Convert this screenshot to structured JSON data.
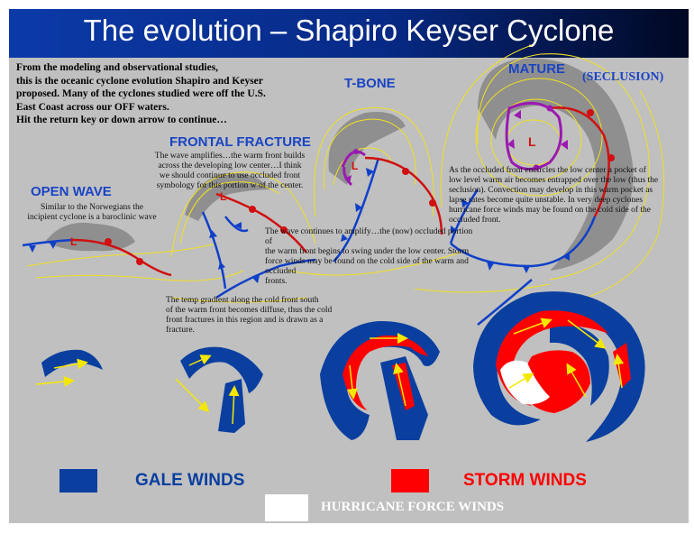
{
  "title": "The evolution – Shapiro Keyser Cyclone",
  "intro_lines": [
    "From the modeling and observational studies,",
    "this is the oceanic cyclone evolution Shapiro and Keyser",
    "proposed.  Many of the cyclones studied were off the U.S.",
    "East Coast across our OFF waters.",
    "Hit the return key or down  arrow to continue…"
  ],
  "stages": {
    "open_wave": "OPEN WAVE",
    "frontal_fracture": "FRONTAL FRACTURE",
    "t_bone": "T-BONE",
    "mature": "MATURE",
    "seclusion": "(SECLUSION)"
  },
  "notes": {
    "open_wave": [
      "Similar to the Norwegians the",
      "incipient cyclone is a baroclinic wave"
    ],
    "frontal_fracture": [
      "The wave amplifies…the warm front builds",
      "across the developing low center…I think",
      "we should continue to use occluded front",
      "symbology for this portion w of the center."
    ],
    "t_bone": [
      "The wave continues to amplify…the (now) occluded portion of",
      "the warm front begins to swing under the low center. Storm",
      "force winds may be found on the cold side of the warm and occluded",
      "fronts."
    ],
    "mature": [
      "As the occluded front encircles the low center a pocket of",
      "low level warm air becomes entrapped over the low (thus the",
      "seclusion). Convection may develop in this warm pocket as",
      "lapse rates become quite unstable. In very deep cyclones",
      "hurricane force winds may be found on the cold side of the",
      "occluded front."
    ],
    "gradient": [
      "The temp gradient along the cold front south",
      "of the warm front becomes diffuse, thus the cold",
      "front fractures in this region and is drawn as a",
      "fracture."
    ]
  },
  "low_symbol": "L",
  "legend": {
    "gale": "GALE WINDS",
    "storm": "STORM WINDS",
    "hurricane": "HURRICANE FORCE WINDS"
  },
  "colors": {
    "gale": "#0a3fa0",
    "storm": "#ff0000",
    "hurricane": "#ffffff",
    "warm_front": "#d01010",
    "cold_front": "#1040c8",
    "occluded_front": "#9a1ab0",
    "isobar": "#f0e020",
    "cloud": "#8a8a8a",
    "wind_arrow": "#f5e800"
  }
}
